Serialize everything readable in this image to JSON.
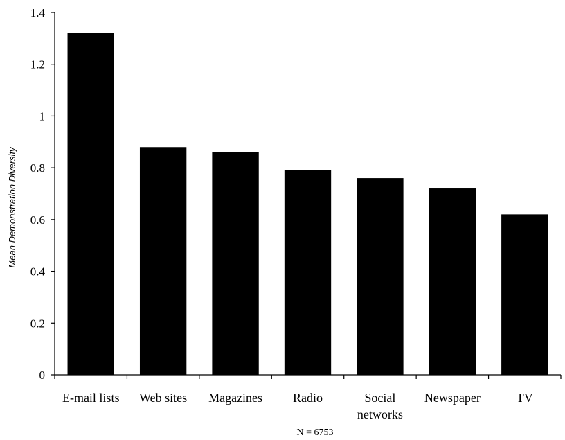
{
  "chart_data": {
    "type": "bar",
    "categories": [
      [
        "E-mail lists"
      ],
      [
        "Web sites"
      ],
      [
        "Magazines"
      ],
      [
        "Radio"
      ],
      [
        "Social",
        "networks"
      ],
      [
        "Newspaper"
      ],
      [
        "TV"
      ]
    ],
    "values": [
      1.32,
      0.88,
      0.86,
      0.79,
      0.76,
      0.72,
      0.62
    ],
    "ylabel": "Mean Demonstration Diversity",
    "xlabel": "",
    "ylim": [
      0,
      1.4
    ],
    "yticks": [
      "0",
      "0.2",
      "0.4",
      "0.6",
      "0.8",
      "1",
      "1.2",
      "1.4"
    ],
    "note": "N = 6753",
    "grid": false,
    "bar_color": "#000000"
  }
}
